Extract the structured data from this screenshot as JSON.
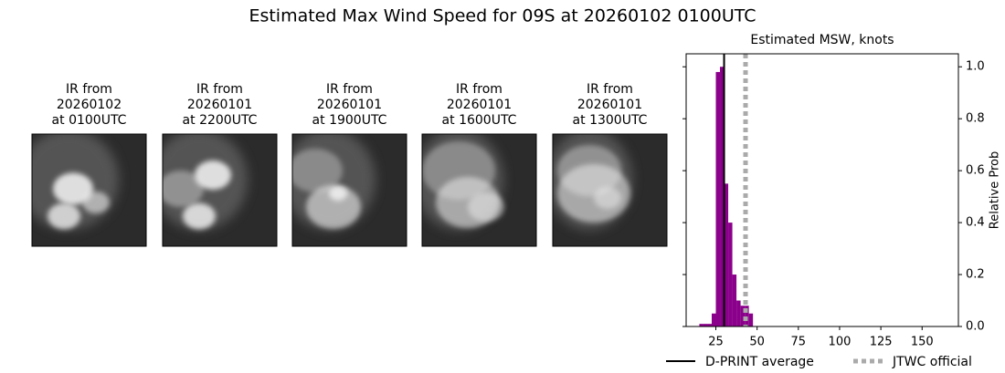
{
  "title": "Estimated Max Wind Speed for 09S at 20260102 0100UTC",
  "panels": [
    {
      "lines": [
        "IR from",
        "20260102",
        "at 0100UTC"
      ]
    },
    {
      "lines": [
        "IR from",
        "20260101",
        "at 2200UTC"
      ]
    },
    {
      "lines": [
        "IR from",
        "20260101",
        "at 1900UTC"
      ]
    },
    {
      "lines": [
        "IR from",
        "20260101",
        "at 1600UTC"
      ]
    },
    {
      "lines": [
        "IR from",
        "20260101",
        "at 1300UTC"
      ]
    }
  ],
  "chart_data": {
    "type": "histogram",
    "title": "Estimated MSW, knots",
    "ylabel": "Relative Prob",
    "bins": [
      15,
      17.5,
      20,
      22.5,
      25,
      27.5,
      30,
      32.5,
      35,
      37.5,
      40,
      42.5,
      45,
      47.5
    ],
    "values": [
      0.01,
      0.01,
      0.01,
      0.05,
      0.98,
      1.0,
      0.55,
      0.4,
      0.2,
      0.1,
      0.08,
      0.08,
      0.05
    ],
    "color": "#8b008b",
    "xlim": [
      7,
      172
    ],
    "ylim": [
      0,
      1.05
    ],
    "xticks": [
      25,
      50,
      75,
      100,
      125,
      150
    ],
    "yticks": [
      {
        "value": 0,
        "label": "0.0"
      },
      {
        "value": 0.2,
        "label": "0.2"
      },
      {
        "value": 0.4,
        "label": "0.4"
      },
      {
        "value": 0.6,
        "label": "0.6"
      },
      {
        "value": 0.8,
        "label": "0.8"
      },
      {
        "value": 1,
        "label": "1.0"
      }
    ],
    "lines": [
      {
        "name": "D-PRINT average",
        "value": 30,
        "color": "#000000",
        "style": "solid"
      },
      {
        "name": "JTWC official",
        "value": 43,
        "color": "#aaaaaa",
        "style": "dotted"
      }
    ]
  }
}
